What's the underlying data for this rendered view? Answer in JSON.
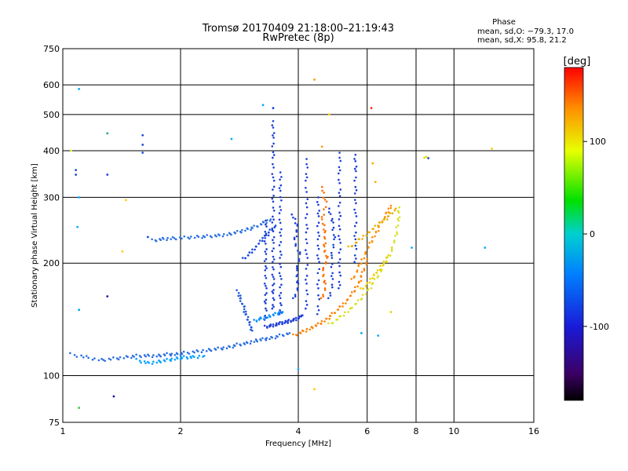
{
  "chart_data": {
    "type": "scatter",
    "title": "Tromsø 20170409 21:18:00–21:19:43",
    "subtitle": "RwPretec (8p)",
    "xlabel": "Frequency [MHz]",
    "ylabel": "Stationary phase Virtual Height [km]",
    "x_scale": "log",
    "y_scale": "log",
    "xlim": [
      1,
      16
    ],
    "ylim": [
      75,
      750
    ],
    "grid": true,
    "x_ticks": [
      1,
      2,
      4,
      6,
      8,
      10,
      16
    ],
    "x_tick_labels": [
      "1",
      "2",
      "4",
      "6",
      "8",
      "10",
      "16"
    ],
    "y_ticks": [
      75,
      100,
      200,
      300,
      400,
      500,
      600,
      750
    ],
    "y_tick_labels": [
      "75",
      "100",
      "200",
      "300",
      "400",
      "500",
      "600",
      "750"
    ],
    "stats_box": {
      "heading": "Phase",
      "line_o": "mean, sd,O: −79.3, 17.0",
      "line_x": "mean, sd,X:  95.8, 21.2"
    },
    "colorbar": {
      "label": "[deg]",
      "range": [
        -180,
        180
      ],
      "ticks": [
        100,
        0,
        -100
      ],
      "tick_labels": [
        "100",
        "0",
        "-100"
      ]
    },
    "traces": [
      {
        "color": "#2b6fe0",
        "points": [
          [
            1.05,
            114
          ],
          [
            1.15,
            112
          ],
          [
            1.25,
            110
          ],
          [
            1.35,
            111
          ],
          [
            1.45,
            112
          ],
          [
            1.55,
            113
          ],
          [
            1.65,
            113
          ],
          [
            1.75,
            113
          ],
          [
            1.85,
            114
          ],
          [
            1.95,
            114
          ],
          [
            2.05,
            115
          ],
          [
            2.2,
            116
          ],
          [
            2.35,
            117
          ],
          [
            2.5,
            118
          ],
          [
            2.65,
            119
          ],
          [
            2.8,
            121
          ],
          [
            2.95,
            122
          ],
          [
            3.1,
            124
          ],
          [
            3.25,
            125
          ],
          [
            3.4,
            126
          ],
          [
            3.6,
            128
          ],
          [
            3.8,
            130
          ]
        ]
      },
      {
        "color": "#1f3fd8",
        "points": [
          [
            3.3,
            135
          ],
          [
            3.4,
            136
          ],
          [
            3.5,
            137
          ],
          [
            3.6,
            138
          ],
          [
            3.7,
            139
          ],
          [
            3.8,
            140
          ],
          [
            3.9,
            141
          ],
          [
            4.0,
            143
          ],
          [
            4.1,
            145
          ]
        ]
      },
      {
        "color": "#ff8000",
        "points": [
          [
            3.9,
            128
          ],
          [
            4.1,
            131
          ],
          [
            4.3,
            134
          ],
          [
            4.5,
            137
          ],
          [
            4.7,
            141
          ],
          [
            4.9,
            146
          ],
          [
            5.1,
            152
          ],
          [
            5.3,
            158
          ],
          [
            5.5,
            166
          ],
          [
            5.7,
            176
          ],
          [
            5.85,
            188
          ],
          [
            6.0,
            205
          ]
        ]
      },
      {
        "color": "#d8e020",
        "points": [
          [
            4.8,
            137
          ],
          [
            5.1,
            143
          ],
          [
            5.4,
            150
          ],
          [
            5.7,
            158
          ],
          [
            6.0,
            168
          ],
          [
            6.3,
            180
          ],
          [
            6.6,
            196
          ],
          [
            6.9,
            214
          ],
          [
            7.1,
            235
          ],
          [
            7.2,
            258
          ],
          [
            7.25,
            282
          ]
        ]
      },
      {
        "color": "#2b70e0",
        "points": [
          [
            1.7,
            230
          ],
          [
            1.8,
            232
          ],
          [
            1.9,
            233
          ],
          [
            2.05,
            234
          ],
          [
            2.2,
            235
          ],
          [
            2.35,
            236
          ],
          [
            2.5,
            237
          ],
          [
            2.65,
            239
          ],
          [
            2.8,
            242
          ],
          [
            2.95,
            246
          ],
          [
            3.1,
            250
          ],
          [
            3.25,
            256
          ],
          [
            3.4,
            262
          ]
        ]
      },
      {
        "color": "#1a4ad8",
        "points": [
          [
            2.9,
            205
          ],
          [
            3.0,
            212
          ],
          [
            3.1,
            220
          ],
          [
            3.2,
            228
          ],
          [
            3.3,
            236
          ],
          [
            3.4,
            244
          ],
          [
            3.5,
            252
          ]
        ]
      },
      {
        "color": "#1c55dd",
        "points": [
          [
            2.8,
            168
          ],
          [
            2.85,
            160
          ],
          [
            2.9,
            152
          ],
          [
            2.95,
            145
          ],
          [
            3.0,
            138
          ],
          [
            3.05,
            132
          ]
        ]
      },
      {
        "color": "#1a3fd6",
        "points": [
          [
            3.45,
            150
          ],
          [
            3.45,
            165
          ],
          [
            3.45,
            180
          ],
          [
            3.45,
            200
          ],
          [
            3.45,
            225
          ],
          [
            3.45,
            255
          ],
          [
            3.45,
            290
          ],
          [
            3.45,
            330
          ],
          [
            3.45,
            380
          ],
          [
            3.45,
            430
          ],
          [
            3.45,
            480
          ]
        ]
      },
      {
        "color": "#1a3fd6",
        "points": [
          [
            3.6,
            145
          ],
          [
            3.6,
            160
          ],
          [
            3.6,
            180
          ],
          [
            3.6,
            205
          ],
          [
            3.6,
            235
          ],
          [
            3.6,
            270
          ],
          [
            3.6,
            310
          ],
          [
            3.6,
            350
          ]
        ]
      },
      {
        "color": "#1a3fd6",
        "points": [
          [
            3.3,
            140
          ],
          [
            3.3,
            155
          ],
          [
            3.3,
            170
          ],
          [
            3.3,
            190
          ],
          [
            3.3,
            210
          ],
          [
            3.3,
            235
          ],
          [
            3.3,
            260
          ]
        ]
      },
      {
        "color": "#1a3fd6",
        "points": [
          [
            4.2,
            150
          ],
          [
            4.2,
            175
          ],
          [
            4.2,
            205
          ],
          [
            4.2,
            240
          ],
          [
            4.2,
            280
          ],
          [
            4.2,
            330
          ],
          [
            4.2,
            380
          ]
        ]
      },
      {
        "color": "#1a3fd6",
        "points": [
          [
            4.5,
            145
          ],
          [
            4.5,
            170
          ],
          [
            4.5,
            200
          ],
          [
            4.5,
            230
          ],
          [
            4.5,
            265
          ],
          [
            4.5,
            300
          ]
        ]
      },
      {
        "color": "#1a3fd6",
        "points": [
          [
            5.1,
            170
          ],
          [
            5.1,
            195
          ],
          [
            5.1,
            225
          ],
          [
            5.1,
            260
          ],
          [
            5.1,
            300
          ],
          [
            5.1,
            345
          ],
          [
            5.1,
            395
          ]
        ]
      },
      {
        "color": "#1a3fd6",
        "points": [
          [
            5.6,
            200
          ],
          [
            5.6,
            230
          ],
          [
            5.6,
            265
          ],
          [
            5.6,
            305
          ],
          [
            5.6,
            350
          ],
          [
            5.6,
            390
          ]
        ]
      },
      {
        "color": "#1a3fd6",
        "points": [
          [
            3.9,
            160
          ],
          [
            4.0,
            175
          ],
          [
            3.95,
            190
          ],
          [
            4.05,
            210
          ],
          [
            3.9,
            230
          ],
          [
            4.0,
            250
          ],
          [
            3.85,
            270
          ]
        ]
      },
      {
        "color": "#1a3fd6",
        "points": [
          [
            4.8,
            160
          ],
          [
            4.9,
            180
          ],
          [
            4.85,
            205
          ],
          [
            4.95,
            230
          ],
          [
            4.9,
            255
          ],
          [
            4.8,
            280
          ]
        ]
      },
      {
        "color": "#ff7000",
        "points": [
          [
            4.6,
            160
          ],
          [
            4.7,
            175
          ],
          [
            4.6,
            190
          ],
          [
            4.75,
            205
          ],
          [
            4.65,
            220
          ],
          [
            4.7,
            240
          ],
          [
            4.6,
            260
          ],
          [
            4.7,
            290
          ],
          [
            4.6,
            320
          ]
        ]
      },
      {
        "color": "#ff8c00",
        "points": [
          [
            5.5,
            180
          ],
          [
            5.7,
            195
          ],
          [
            5.9,
            210
          ],
          [
            6.1,
            225
          ],
          [
            6.3,
            240
          ],
          [
            6.5,
            255
          ],
          [
            6.7,
            270
          ],
          [
            6.9,
            285
          ]
        ]
      },
      {
        "color": "#e8b000",
        "points": [
          [
            5.4,
            220
          ],
          [
            5.7,
            230
          ],
          [
            6.0,
            240
          ],
          [
            6.3,
            250
          ],
          [
            6.6,
            260
          ],
          [
            6.9,
            270
          ],
          [
            7.1,
            280
          ]
        ]
      },
      {
        "color": "#f0d000",
        "points": [
          [
            5.8,
            170
          ],
          [
            6.0,
            175
          ],
          [
            6.2,
            185
          ],
          [
            6.4,
            190
          ],
          [
            6.6,
            200
          ],
          [
            6.8,
            210
          ]
        ]
      },
      {
        "color": "#00a0ff",
        "points": [
          [
            1.55,
            110
          ],
          [
            1.65,
            108
          ],
          [
            1.75,
            109
          ],
          [
            1.85,
            110
          ],
          [
            1.95,
            111
          ],
          [
            2.05,
            112
          ],
          [
            2.15,
            112
          ],
          [
            2.3,
            113
          ]
        ]
      },
      {
        "color": "#0090ff",
        "points": [
          [
            3.1,
            140
          ],
          [
            3.2,
            142
          ],
          [
            3.35,
            144
          ],
          [
            3.5,
            146
          ],
          [
            3.65,
            148
          ]
        ]
      }
    ],
    "scatter_points": [
      {
        "x": 1.1,
        "y": 585,
        "color": "#00aaff"
      },
      {
        "x": 1.08,
        "y": 355,
        "color": "#1a4ad8"
      },
      {
        "x": 1.08,
        "y": 345,
        "color": "#1a4ad8"
      },
      {
        "x": 1.1,
        "y": 300,
        "color": "#00aaff"
      },
      {
        "x": 1.09,
        "y": 250,
        "color": "#00aaff"
      },
      {
        "x": 1.05,
        "y": 400,
        "color": "#ccff33"
      },
      {
        "x": 1.1,
        "y": 150,
        "color": "#00aaff"
      },
      {
        "x": 1.1,
        "y": 82,
        "color": "#33cc33"
      },
      {
        "x": 1.3,
        "y": 445,
        "color": "#22aa66"
      },
      {
        "x": 1.3,
        "y": 345,
        "color": "#1a3fd6"
      },
      {
        "x": 1.3,
        "y": 163,
        "color": "#1a1aa8"
      },
      {
        "x": 1.35,
        "y": 88,
        "color": "#1a1aa8"
      },
      {
        "x": 1.42,
        "y": 215,
        "color": "#ffcc00"
      },
      {
        "x": 1.45,
        "y": 295,
        "color": "#ffcc00"
      },
      {
        "x": 1.6,
        "y": 440,
        "color": "#1a4ad8"
      },
      {
        "x": 1.6,
        "y": 415,
        "color": "#1a4ad8"
      },
      {
        "x": 1.6,
        "y": 395,
        "color": "#1a4ad8"
      },
      {
        "x": 1.65,
        "y": 235,
        "color": "#1a4ad8"
      },
      {
        "x": 2.7,
        "y": 430,
        "color": "#00aaff"
      },
      {
        "x": 3.25,
        "y": 530,
        "color": "#00aaff"
      },
      {
        "x": 3.45,
        "y": 520,
        "color": "#1a3fd6"
      },
      {
        "x": 4.4,
        "y": 620,
        "color": "#ff9900"
      },
      {
        "x": 4.4,
        "y": 92,
        "color": "#ffcc00"
      },
      {
        "x": 4.0,
        "y": 104,
        "color": "#00aaff"
      },
      {
        "x": 4.6,
        "y": 410,
        "color": "#ff9900"
      },
      {
        "x": 4.8,
        "y": 500,
        "color": "#ffcc00"
      },
      {
        "x": 6.15,
        "y": 520,
        "color": "#ff3300"
      },
      {
        "x": 6.2,
        "y": 370,
        "color": "#ffaa00"
      },
      {
        "x": 6.3,
        "y": 330,
        "color": "#ffaa00"
      },
      {
        "x": 7.8,
        "y": 220,
        "color": "#00aaff"
      },
      {
        "x": 8.4,
        "y": 383,
        "color": "#e8e000"
      },
      {
        "x": 8.5,
        "y": 385,
        "color": "#e8e000"
      },
      {
        "x": 8.6,
        "y": 382,
        "color": "#1a4ad8"
      },
      {
        "x": 12.0,
        "y": 220,
        "color": "#00aaff"
      },
      {
        "x": 12.5,
        "y": 405,
        "color": "#ffcc00"
      },
      {
        "x": 5.8,
        "y": 130,
        "color": "#00aaff"
      },
      {
        "x": 6.4,
        "y": 128,
        "color": "#00aaff"
      },
      {
        "x": 6.9,
        "y": 148,
        "color": "#e8d000"
      }
    ]
  }
}
